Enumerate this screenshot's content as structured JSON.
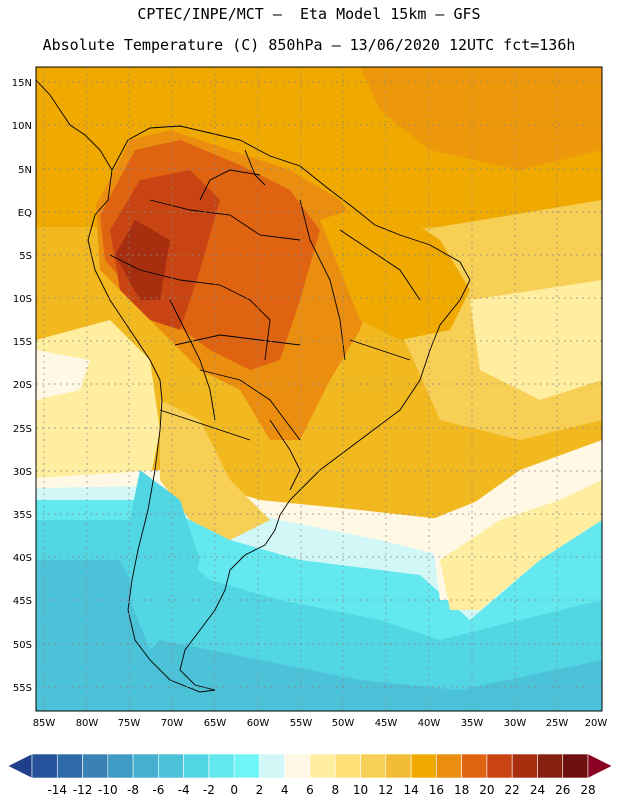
{
  "header": {
    "line1": "CPTEC/INPE/MCT –  Eta Model 15km – GFS",
    "line2": "Absolute Temperature (C) 850hPa – 13/06/2020 12UTC fct=136h"
  },
  "map": {
    "lat_labels": [
      "15N",
      "10N",
      "5N",
      "EQ",
      "5S",
      "10S",
      "15S",
      "20S",
      "25S",
      "30S",
      "35S",
      "40S",
      "45S",
      "50S",
      "55S"
    ],
    "lon_labels": [
      "85W",
      "80W",
      "75W",
      "70W",
      "65W",
      "60W",
      "55W",
      "50W",
      "45W",
      "40W",
      "35W",
      "30W",
      "25W",
      "20W"
    ],
    "extent": {
      "lon": [
        -86,
        -19.5
      ],
      "lat": [
        17,
        -58
      ]
    }
  },
  "colorbar": {
    "labels": [
      "-14",
      "-12",
      "-10",
      "-8",
      "-6",
      "-4",
      "-2",
      "0",
      "2",
      "4",
      "6",
      "8",
      "10",
      "12",
      "14",
      "16",
      "18",
      "20",
      "22",
      "24",
      "26",
      "28"
    ],
    "colors": [
      "#1f3f8a",
      "#25529a",
      "#2e6aa8",
      "#3a82b5",
      "#3f9bc4",
      "#45b0cf",
      "#4cc2d8",
      "#53d6e3",
      "#62e8ee",
      "#6ff5f5",
      "#d2f7f7",
      "#fff8e4",
      "#ffeea0",
      "#fde178",
      "#f7cf55",
      "#f2bd35",
      "#efa900",
      "#eb8e10",
      "#df6310",
      "#c84413",
      "#a82e10",
      "#861f0f",
      "#6e1010",
      "#8b0023"
    ]
  }
}
